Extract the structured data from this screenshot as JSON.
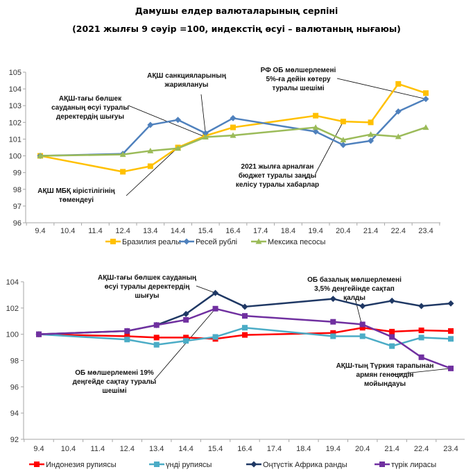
{
  "title": {
    "line1": "Дамушы елдер валюталарының серпіні",
    "line2": "(2021 жылғы 9 сәуір =100, индекстің өсуі – валютаның нығаюы)"
  },
  "chart_data": [
    {
      "type": "line",
      "id": "top",
      "title": "",
      "xlabel": "",
      "ylabel": "",
      "categories": [
        "9.4",
        "10.4",
        "11.4",
        "12.4",
        "13.4",
        "14.4",
        "15.4",
        "16.4",
        "17.4",
        "18.4",
        "19.4",
        "20.4",
        "21.4",
        "22.4",
        "23.4"
      ],
      "ylim": [
        96,
        105
      ],
      "yticks": [
        96,
        97,
        98,
        99,
        100,
        101,
        102,
        103,
        104,
        105
      ],
      "grid": false,
      "legend": "bottom",
      "series": [
        {
          "name": "Бразилия реалы",
          "color": "#FFC000",
          "marker": "square",
          "values": [
            100,
            null,
            null,
            99.05,
            99.38,
            100.5,
            101.2,
            101.7,
            null,
            null,
            102.4,
            102.05,
            102.0,
            104.3,
            103.75
          ]
        },
        {
          "name": "Ресей рублі",
          "color": "#4F81BD",
          "marker": "diamond",
          "values": [
            100,
            null,
            null,
            100.12,
            101.85,
            102.15,
            101.35,
            102.25,
            null,
            null,
            101.45,
            100.65,
            100.9,
            102.65,
            103.4
          ]
        },
        {
          "name": "Мексика песосы",
          "color": "#9BBB59",
          "marker": "triangle",
          "values": [
            100,
            null,
            null,
            100.08,
            100.3,
            100.45,
            101.12,
            101.22,
            null,
            null,
            101.7,
            100.95,
            101.28,
            101.15,
            101.7
          ]
        }
      ],
      "annotations": [
        {
          "lines": [
            "АҚШ санкцияларының",
            "жариялануы"
          ],
          "x": "15.4",
          "y": 101.35
        },
        {
          "lines": [
            "АҚШ-тағы бөлшек",
            "сауданың өсуі туралы",
            "деректердің шығуы"
          ],
          "x": "15.4",
          "y": 101.12
        },
        {
          "lines": [
            "РФ ОБ мөлшерлемені",
            "5%-ға дейін көтеру",
            "туралы шешімі"
          ],
          "x": "23.4",
          "y": 103.4
        },
        {
          "lines": [
            "АҚШ МБҚ кірістілігінің",
            "төмендеуі"
          ],
          "x": "14.4",
          "y": 100.5
        },
        {
          "lines": [
            "2021 жылға арналған",
            "бюджет туралы заңды",
            "келісу туралы хабарлар"
          ],
          "x": "20.4",
          "y": 102.05
        }
      ]
    },
    {
      "type": "line",
      "id": "bottom",
      "title": "",
      "xlabel": "",
      "ylabel": "",
      "categories": [
        "9.4",
        "10.4",
        "11.4",
        "12.4",
        "13.4",
        "14.4",
        "15.4",
        "16.4",
        "17.4",
        "18.4",
        "19.4",
        "20.4",
        "21.4",
        "22.4",
        "23.4"
      ],
      "ylim": [
        92,
        104
      ],
      "yticks": [
        92,
        94,
        96,
        98,
        100,
        102,
        104
      ],
      "grid": false,
      "legend": "bottom",
      "series": [
        {
          "name": "Индонезия рупиясы",
          "color": "#FF0000",
          "marker": "square",
          "values": [
            100,
            null,
            null,
            99.85,
            99.75,
            99.75,
            99.65,
            99.95,
            null,
            null,
            100.1,
            100.5,
            100.2,
            100.3,
            100.25
          ]
        },
        {
          "name": "үнді рупиясы",
          "color": "#4BACC6",
          "marker": "square",
          "values": [
            100,
            null,
            null,
            99.6,
            99.2,
            99.5,
            99.8,
            100.5,
            null,
            null,
            99.85,
            99.85,
            99.1,
            99.75,
            99.65
          ]
        },
        {
          "name": "Оңтүстік Африка ранды",
          "color": "#1F3864",
          "marker": "diamond",
          "values": [
            100,
            null,
            null,
            100.25,
            100.7,
            101.55,
            103.15,
            102.1,
            null,
            null,
            102.7,
            102.15,
            102.55,
            102.15,
            102.35
          ]
        },
        {
          "name": "түрік лирасы",
          "color": "#7030A0",
          "marker": "square",
          "values": [
            100,
            null,
            null,
            100.25,
            100.7,
            101.1,
            101.95,
            101.4,
            null,
            null,
            100.95,
            100.75,
            99.8,
            98.25,
            97.4
          ]
        }
      ],
      "annotations": [
        {
          "lines": [
            "АҚШ-тағы бөлшек сауданың",
            "өсуі туралы деректердің",
            "шығуы"
          ],
          "x": "15.4",
          "y": 103.15
        },
        {
          "lines": [
            "ОБ базалық мөлшерлемені",
            "3,5% деңгейінде сақтап",
            "қалды"
          ],
          "x": "20.4",
          "y": 100.5
        },
        {
          "lines": [
            "ОБ мөлшерлемені 19%",
            "деңгейде сақтау туралы",
            "шешімі"
          ],
          "x": "15.4",
          "y": 101.95
        },
        {
          "lines": [
            "АҚШ-тың Түркия тарапынан",
            "армян геноцидін",
            "мойындауы"
          ],
          "x": "23.4",
          "y": 97.4
        }
      ]
    }
  ]
}
